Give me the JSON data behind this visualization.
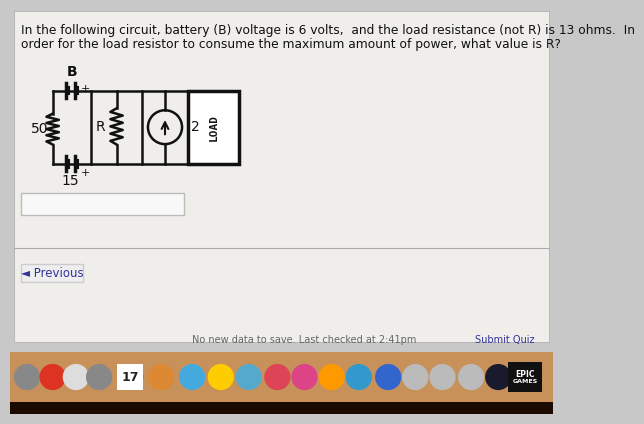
{
  "bg_color": "#c8c8c8",
  "page_bg": "#f0eeeb",
  "text_color": "#111111",
  "question_text_line1": "In the following circuit, battery (B) voltage is 6 volts,  and the load resistance (not R) is 13 ohms.  In",
  "question_text_line2": "order for the load resistor to consume the maximum amount of power, what value is R?",
  "label_B": "B",
  "label_50": "50",
  "label_R": "R",
  "label_2": "2",
  "label_15": "15",
  "label_LOAD": "LOAD",
  "label_plus_top": "+",
  "label_plus_bot": "+",
  "previous_text": "◄ Previous",
  "bottom_text": "No new data to save. Last checked at 2:41pm",
  "submit_text": "Submit Quiz",
  "circuit_line_color": "#111111",
  "load_box_color": "#ffffff",
  "taskbar_color": "#c8915a",
  "taskbar_dark": "#1a0a00"
}
